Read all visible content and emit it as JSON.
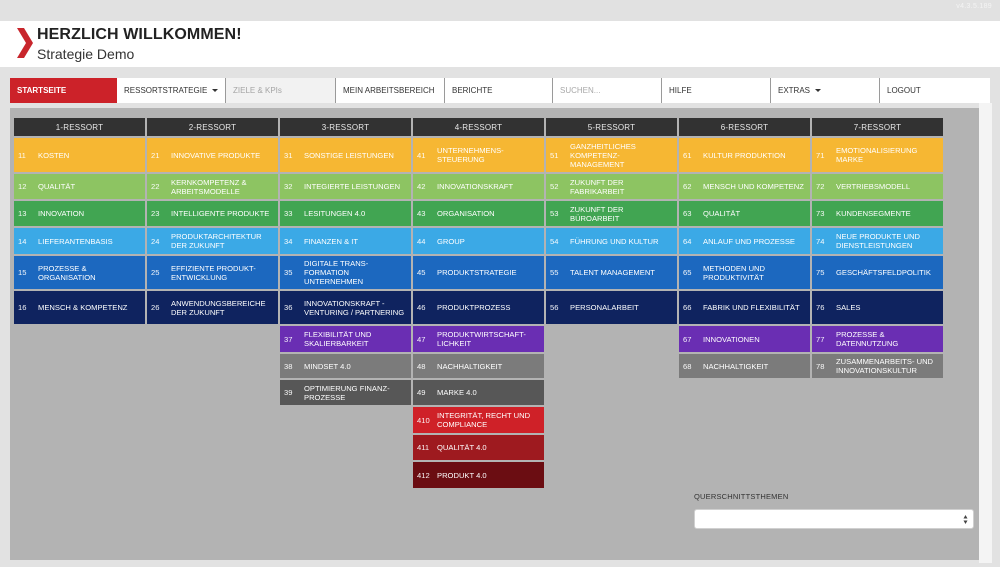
{
  "topbar": {
    "version": "v4.3.5.189"
  },
  "header": {
    "logo_icon": "red-chevron-logo",
    "title": "HERZLICH WILLKOMMEN!",
    "subtitle": "Strategie Demo"
  },
  "nav": {
    "items": [
      {
        "label": "STARTSEITE",
        "active": true
      },
      {
        "label": "RESSORTSTRATEGIE",
        "dropdown": true
      },
      {
        "label": "ZIELE & KPIs",
        "disabled": true
      },
      {
        "label": "MEIN ARBEITSBEREICH"
      },
      {
        "label": "BERICHTE"
      },
      {
        "label": "HILFE"
      },
      {
        "label": "EXTRAS",
        "dropdown": true
      },
      {
        "label": "LOGOUT"
      }
    ],
    "search": {
      "placeholder": "SUCHEN...",
      "value": ""
    }
  },
  "colors": {
    "brand_red": "#cc2229",
    "row1_orange": "#f6b733",
    "row2_lightgreen": "#8dc462",
    "row3_green": "#41a552",
    "row4_lightblue": "#3ba9e6",
    "row5_blue": "#1c68bf",
    "row6_navy": "#0f235f",
    "row7_purple": "#6a2eb3",
    "row8_gray": "#7b7b7b",
    "row9_darkgray": "#575757",
    "row10_red": "#cf2128",
    "row11_darkred": "#9e1a1f",
    "row12_maroon": "#6b0d12",
    "header_dark": "#323232",
    "panel_bg": "#b3b3b3"
  },
  "ressorts": [
    {
      "title": "1-RESSORT",
      "items": [
        {
          "num": "11",
          "label": "KOSTEN"
        },
        {
          "num": "12",
          "label": "QUALITÄT"
        },
        {
          "num": "13",
          "label": "INNOVATION"
        },
        {
          "num": "14",
          "label": "LIEFERANTENBASIS"
        },
        {
          "num": "15",
          "label": "PROZESSE & ORGANISATION"
        },
        {
          "num": "16",
          "label": "MENSCH & KOMPETENZ"
        }
      ]
    },
    {
      "title": "2-RESSORT",
      "items": [
        {
          "num": "21",
          "label": "INNOVATIVE PRODUKTE"
        },
        {
          "num": "22",
          "label": "KERNKOMPETENZ & ARBEITSMODELLE"
        },
        {
          "num": "23",
          "label": "INTELLIGENTE PRODUKTE"
        },
        {
          "num": "24",
          "label": "PRODUKTARCHITEKTUR DER ZUKUNFT"
        },
        {
          "num": "25",
          "label": "EFFIZIENTE PRODUKT-ENTWICKLUNG"
        },
        {
          "num": "26",
          "label": "ANWENDUNGSBEREICHE DER ZUKUNFT"
        }
      ]
    },
    {
      "title": "3-RESSORT",
      "items": [
        {
          "num": "31",
          "label": "SONSTIGE LEISTUNGEN"
        },
        {
          "num": "32",
          "label": "INTEGIERTE LEISTUNGEN"
        },
        {
          "num": "33",
          "label": "LESITUNGEN 4.0"
        },
        {
          "num": "34",
          "label": "FINANZEN & IT"
        },
        {
          "num": "35",
          "label": "DIGITALE TRANS-FORMATION UNTERNEHMEN"
        },
        {
          "num": "36",
          "label": "INNOVATIONSKRAFT - VENTURING / PARTNERING"
        },
        {
          "num": "37",
          "label": "FLEXIBILITÄT UND SKALIERBARKEIT"
        },
        {
          "num": "38",
          "label": "MINDSET 4.0"
        },
        {
          "num": "39",
          "label": "OPTIMIERUNG FINANZ-PROZESSE"
        }
      ]
    },
    {
      "title": "4-RESSORT",
      "items": [
        {
          "num": "41",
          "label": "UNTERNEHMENS-STEUERUNG"
        },
        {
          "num": "42",
          "label": "INNOVATIONSKRAFT"
        },
        {
          "num": "43",
          "label": "ORGANISATION"
        },
        {
          "num": "44",
          "label": "GROUP"
        },
        {
          "num": "45",
          "label": "PRODUKTSTRATEGIE"
        },
        {
          "num": "46",
          "label": "PRODUKTPROZESS"
        },
        {
          "num": "47",
          "label": "PRODUKTWIRTSCHAFT-LICHKEIT"
        },
        {
          "num": "48",
          "label": "NACHHALTIGKEIT"
        },
        {
          "num": "49",
          "label": "MARKE 4.0"
        },
        {
          "num": "410",
          "label": "INTEGRITÄT, RECHT UND COMPLIANCE"
        },
        {
          "num": "411",
          "label": "QUALITÄT 4.0"
        },
        {
          "num": "412",
          "label": "PRODUKT 4.0"
        }
      ]
    },
    {
      "title": "5-RESSORT",
      "items": [
        {
          "num": "51",
          "label": "GANZHEITLICHES KOMPETENZ-MANAGEMENT"
        },
        {
          "num": "52",
          "label": "ZUKUNFT DER FABRIKARBEIT"
        },
        {
          "num": "53",
          "label": "ZUKUNFT DER BÜROARBEIT"
        },
        {
          "num": "54",
          "label": "FÜHRUNG UND KULTUR"
        },
        {
          "num": "55",
          "label": "TALENT MANAGEMENT"
        },
        {
          "num": "56",
          "label": "PERSONALARBEIT"
        }
      ]
    },
    {
      "title": "6-RESSORT",
      "items": [
        {
          "num": "61",
          "label": "KULTUR PRODUKTION"
        },
        {
          "num": "62",
          "label": "MENSCH UND KOMPETENZ"
        },
        {
          "num": "63",
          "label": "QUALITÄT"
        },
        {
          "num": "64",
          "label": "ANLAUF UND PROZESSE"
        },
        {
          "num": "65",
          "label": "METHODEN UND PRODUKTIVITÄT"
        },
        {
          "num": "66",
          "label": "FABRIK UND FLEXIBILITÄT"
        },
        {
          "num": "67",
          "label": "INNOVATIONEN"
        },
        {
          "num": "68",
          "label": "NACHHALTIGKEIT"
        }
      ]
    },
    {
      "title": "7-RESSORT",
      "items": [
        {
          "num": "71",
          "label": "EMOTIONALISIERUNG MARKE"
        },
        {
          "num": "72",
          "label": "VERTRIEBSMODELL"
        },
        {
          "num": "73",
          "label": "KUNDENSEGMENTE"
        },
        {
          "num": "74",
          "label": "NEUE PRODUKTE UND DIENSTLEISTUNGEN"
        },
        {
          "num": "75",
          "label": "GESCHÄFTSFELDPOLITIK"
        },
        {
          "num": "76",
          "label": "SALES"
        },
        {
          "num": "77",
          "label": "PROZESSE & DATENNUTZUNG"
        },
        {
          "num": "78",
          "label": "ZUSAMMENARBEITS- UND INNOVATIONSKULTUR"
        }
      ]
    }
  ],
  "querschnitt": {
    "label": "QUERSCHNITTSTHEMEN",
    "selected": ""
  }
}
